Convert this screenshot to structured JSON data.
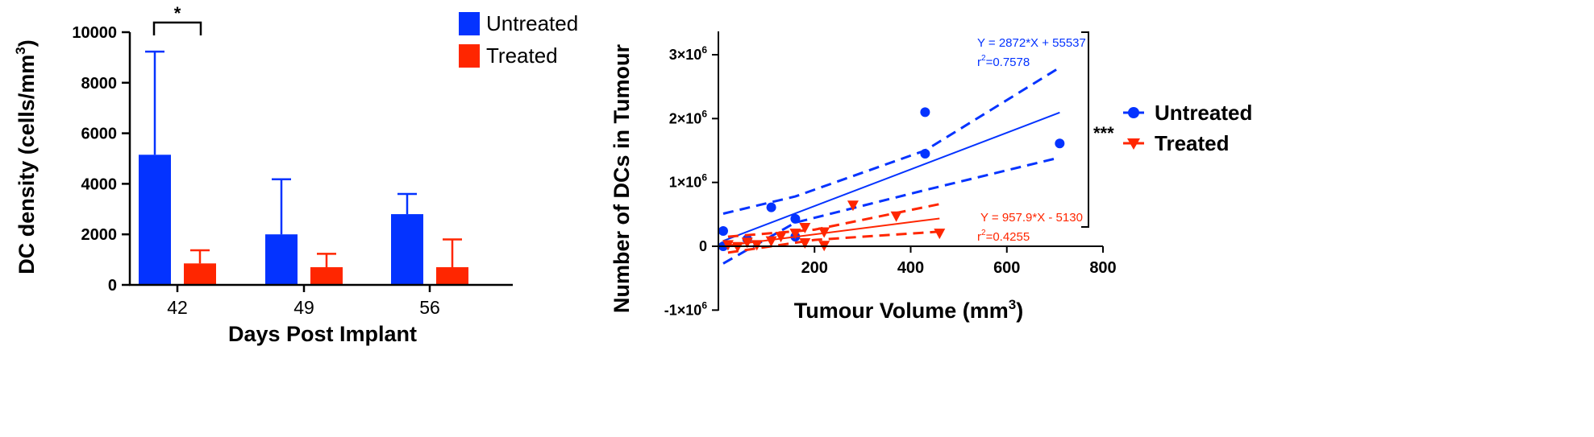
{
  "chart_data": [
    {
      "type": "bar",
      "xlabel": "Days Post Implant",
      "ylabel": {
        "main": "DC density (cells/mm",
        "sup": "3",
        "end": ")"
      },
      "ylim": [
        0,
        10000
      ],
      "yticks": [
        "0",
        "2000",
        "4000",
        "6000",
        "8000",
        "10000"
      ],
      "categories": [
        "42",
        "49",
        "56"
      ],
      "series": [
        {
          "name": "Untreated",
          "color": "#0433FF",
          "values": [
            5150,
            2000,
            2800
          ],
          "error": [
            4080,
            2180,
            800
          ]
        },
        {
          "name": "Treated",
          "color": "#FF2600",
          "values": [
            850,
            700,
            700
          ],
          "error": [
            520,
            530,
            1100
          ]
        }
      ],
      "significance": {
        "label": "*",
        "category": "42"
      },
      "legend": "top-right"
    },
    {
      "type": "scatter",
      "xlabel": {
        "main": "Tumour Volume (mm",
        "sup": "3",
        "end": ")"
      },
      "ylabel": "Number of DCs in Tumour",
      "xlim": [
        0,
        800
      ],
      "ylim": [
        -1000000,
        3000000
      ],
      "xticks": [
        "0",
        "200",
        "400",
        "600",
        "800"
      ],
      "yticks": [
        {
          "value": -1000000,
          "base": "-1×10",
          "exp": "6"
        },
        {
          "value": 0,
          "base": "0",
          "exp": ""
        },
        {
          "value": 1000000,
          "base": "1×10",
          "exp": "6"
        },
        {
          "value": 2000000,
          "base": "2×10",
          "exp": "6"
        },
        {
          "value": 3000000,
          "base": "3×10",
          "exp": "6"
        }
      ],
      "series": [
        {
          "name": "Untreated",
          "color": "#0433FF",
          "marker": "circle",
          "points": [
            [
              10,
              240000
            ],
            [
              10,
              0
            ],
            [
              60,
              110000
            ],
            [
              110,
              610000
            ],
            [
              160,
              430000
            ],
            [
              160,
              150000
            ],
            [
              430,
              2100000
            ],
            [
              430,
              1450000
            ],
            [
              710,
              1610000
            ]
          ],
          "fit": {
            "slope": 2872,
            "intercept": 55537,
            "x_range": [
              10,
              710
            ]
          },
          "ci_lower": [
            [
              10,
              -270000
            ],
            [
              160,
              370000
            ],
            [
              430,
              880000
            ],
            [
              710,
              1390000
            ]
          ],
          "ci_upper": [
            [
              10,
              510000
            ],
            [
              160,
              780000
            ],
            [
              430,
              1500000
            ],
            [
              710,
              2800000
            ]
          ],
          "equation": "Y = 2872*X + 55537",
          "r2_prefix": "r",
          "r2_sup": "2",
          "r2_value": "=0.7578"
        },
        {
          "name": "Treated",
          "color": "#FF2600",
          "marker": "triangle-down",
          "points": [
            [
              20,
              20000
            ],
            [
              40,
              -10000
            ],
            [
              60,
              60000
            ],
            [
              80,
              20000
            ],
            [
              110,
              80000
            ],
            [
              130,
              150000
            ],
            [
              160,
              200000
            ],
            [
              180,
              50000
            ],
            [
              180,
              290000
            ],
            [
              220,
              220000
            ],
            [
              220,
              10000
            ],
            [
              280,
              640000
            ],
            [
              370,
              470000
            ],
            [
              460,
              200000
            ]
          ],
          "fit": {
            "slope": 957.9,
            "intercept": -5130,
            "x_range": [
              20,
              460
            ]
          },
          "ci_lower": [
            [
              20,
              -100000
            ],
            [
              200,
              100000
            ],
            [
              460,
              230000
            ]
          ],
          "ci_upper": [
            [
              20,
              150000
            ],
            [
              200,
              260000
            ],
            [
              460,
              660000
            ]
          ],
          "equation": "Y = 957.9*X - 5130",
          "r2_prefix": "r",
          "r2_sup": "2",
          "r2_value": "=0.4255"
        }
      ],
      "significance": {
        "label": "***"
      },
      "legend": "right"
    }
  ]
}
